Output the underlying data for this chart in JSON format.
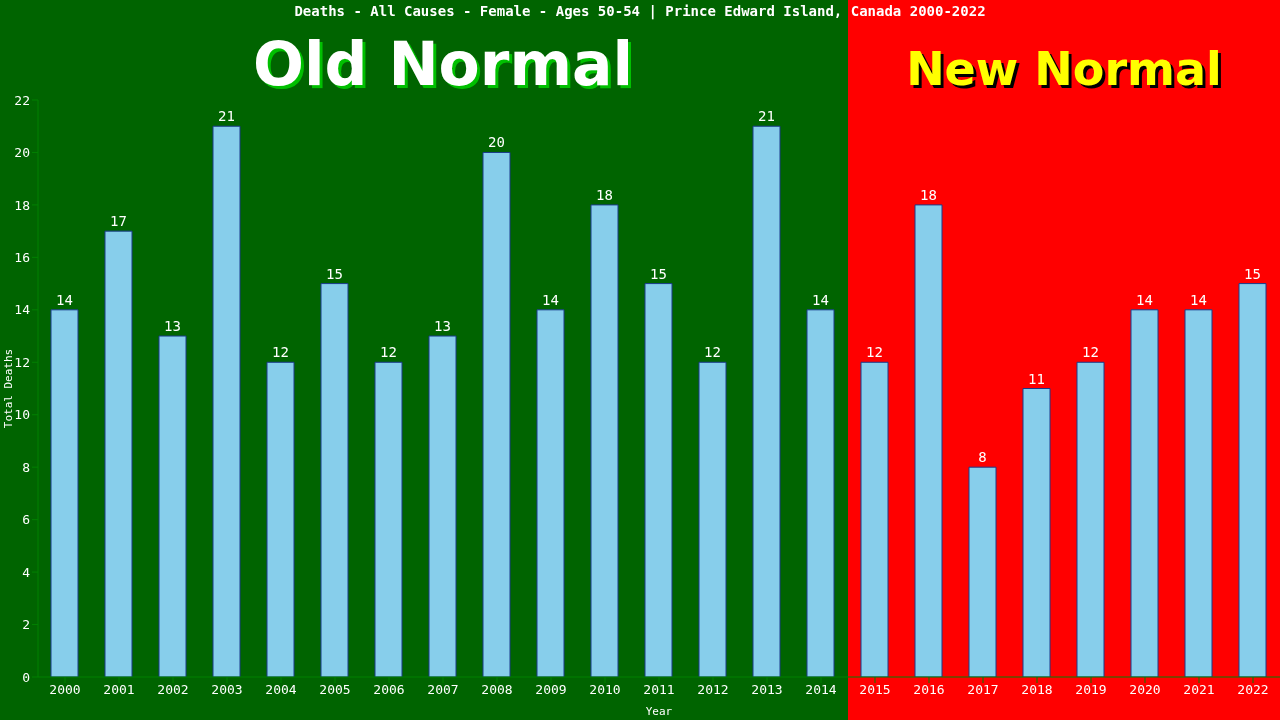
{
  "chart_data": {
    "type": "bar",
    "title": "Deaths - All Causes - Female - Ages 50-54 | Prince Edward Island, Canada 2000-2022",
    "xlabel": "Year",
    "ylabel": "Total Deaths",
    "categories": [
      "2000",
      "2001",
      "2002",
      "2003",
      "2004",
      "2005",
      "2006",
      "2007",
      "2008",
      "2009",
      "2010",
      "2011",
      "2012",
      "2013",
      "2014",
      "2015",
      "2016",
      "2017",
      "2018",
      "2019",
      "2020",
      "2021",
      "2022"
    ],
    "values": [
      14,
      17,
      13,
      21,
      12,
      15,
      12,
      13,
      20,
      14,
      18,
      15,
      12,
      21,
      14,
      12,
      18,
      8,
      11,
      12,
      14,
      14,
      15
    ],
    "color": "#87ceeb",
    "ylim": [
      0,
      22
    ],
    "yticks": [
      0,
      2,
      4,
      6,
      8,
      10,
      12,
      14,
      16,
      18,
      20,
      22
    ],
    "data_labels": true,
    "grid": false,
    "legend": false,
    "bands": [
      {
        "axis": "x",
        "from": "2000",
        "to": "2014",
        "label": "Old Normal",
        "color": "#006400"
      },
      {
        "axis": "x",
        "from": "2015",
        "to": "2022",
        "label": "New Normal",
        "color": "#ff0000"
      }
    ]
  }
}
